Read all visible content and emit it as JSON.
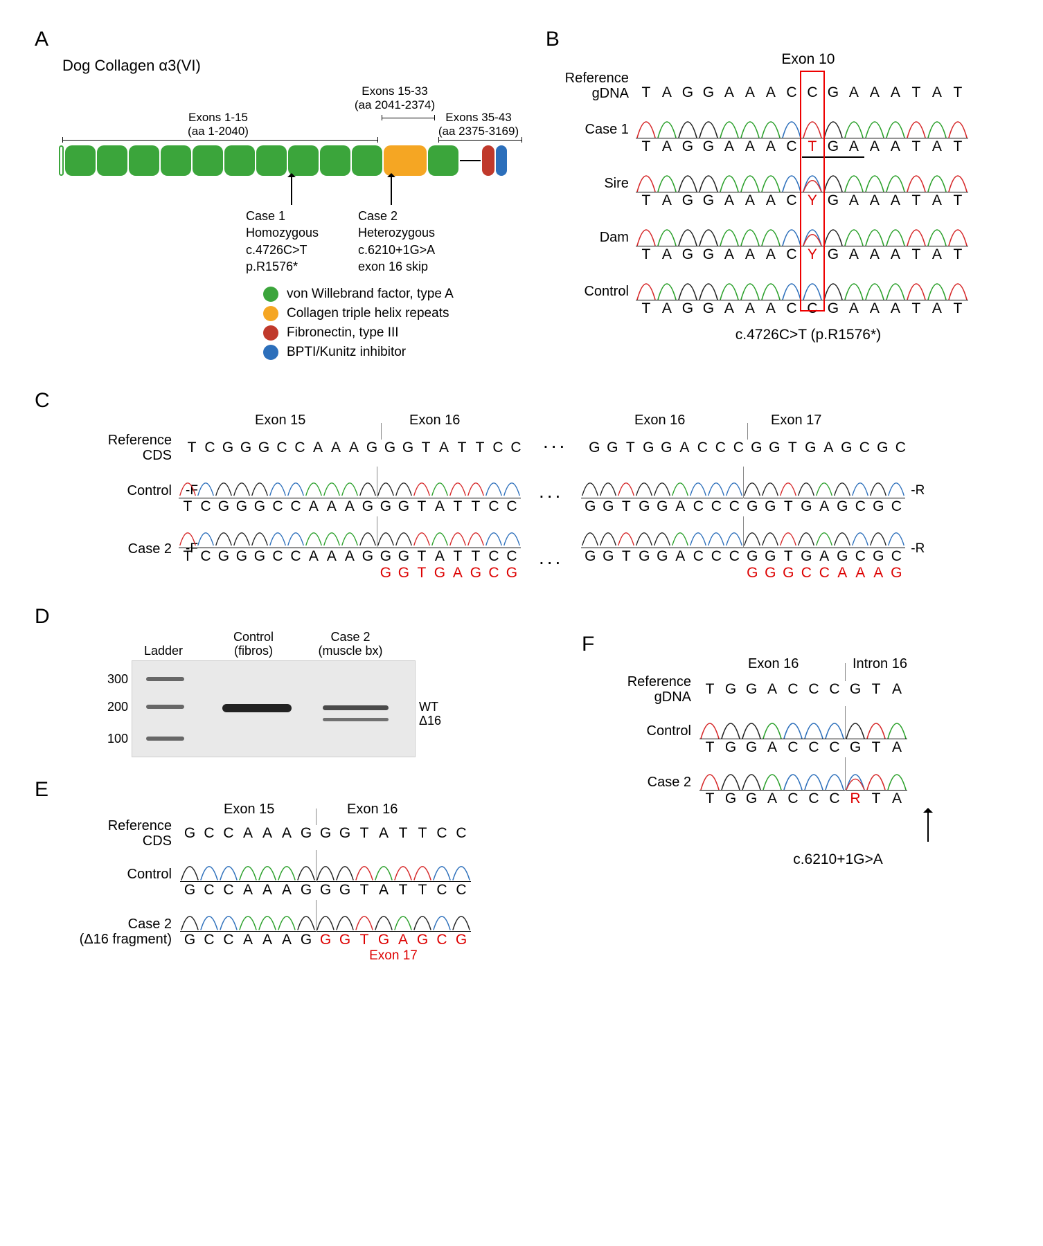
{
  "colors": {
    "vwf": "#3ba53b",
    "helix": "#f5a623",
    "fn3": "#c0392b",
    "bpti": "#2c6fbb",
    "mut": "#d00000",
    "redbox": "#e00000",
    "peakA": "#2aa02a",
    "peakC": "#2c6fbb",
    "peakG": "#222222",
    "peakT": "#d62728"
  },
  "panelA": {
    "label": "A",
    "title": "Dog Collagen α3(VI)",
    "brackets": [
      {
        "text1": "Exons 1-15",
        "text2": "(aa 1-2040)"
      },
      {
        "text1": "Exons 15-33",
        "text2": "(aa 2041-2374)"
      },
      {
        "text1": "Exons 35-43",
        "text2": "(aa 2375-3169)"
      }
    ],
    "case1": {
      "l1": "Case 1",
      "l2": "Homozygous",
      "l3": "c.4726C>T",
      "l4": "p.R1576*"
    },
    "case2": {
      "l1": "Case 2",
      "l2": "Heterozygous",
      "l3": "c.6210+1G>A",
      "l4": "exon 16 skip"
    },
    "legend": [
      {
        "color": "#3ba53b",
        "label": "von Willebrand factor, type A"
      },
      {
        "color": "#f5a623",
        "label": "Collagen triple helix repeats"
      },
      {
        "color": "#c0392b",
        "label": "Fibronectin, type III"
      },
      {
        "color": "#2c6fbb",
        "label": "BPTI/Kunitz inhibitor"
      }
    ]
  },
  "panelB": {
    "label": "B",
    "title": "Exon 10",
    "refLabel": "Reference gDNA",
    "refSeq": [
      "T",
      "A",
      "G",
      "G",
      "A",
      "A",
      "A",
      "C",
      "C",
      "G",
      "A",
      "A",
      "A",
      "T",
      "A",
      "T"
    ],
    "mutIndex": 8,
    "rows": [
      {
        "label": "Case 1",
        "seq": [
          "T",
          "A",
          "G",
          "G",
          "A",
          "A",
          "A",
          "C",
          "T",
          "G",
          "A",
          "A",
          "A",
          "T",
          "A",
          "T"
        ],
        "mutIdx": 8,
        "underline": true
      },
      {
        "label": "Sire",
        "seq": [
          "T",
          "A",
          "G",
          "G",
          "A",
          "A",
          "A",
          "C",
          "Y",
          "G",
          "A",
          "A",
          "A",
          "T",
          "A",
          "T"
        ],
        "mutIdx": 8,
        "double": true
      },
      {
        "label": "Dam",
        "seq": [
          "T",
          "A",
          "G",
          "G",
          "A",
          "A",
          "A",
          "C",
          "Y",
          "G",
          "A",
          "A",
          "A",
          "T",
          "A",
          "T"
        ],
        "mutIdx": 8,
        "double": true
      },
      {
        "label": "Control",
        "seq": [
          "T",
          "A",
          "G",
          "G",
          "A",
          "A",
          "A",
          "C",
          "C",
          "G",
          "A",
          "A",
          "A",
          "T",
          "A",
          "T"
        ],
        "mutIdx": -1
      }
    ],
    "caption": "c.4726C>T (p.R1576*)"
  },
  "panelC": {
    "label": "C",
    "headers": [
      "Exon 15",
      "Exon 16",
      "Exon 17"
    ],
    "refLabel": "Reference CDS",
    "left": {
      "ref": [
        "T",
        "C",
        "G",
        "G",
        "G",
        "C",
        "C",
        "A",
        "A",
        "A",
        "G",
        "G",
        "G",
        "T",
        "A",
        "T",
        "T",
        "C",
        "C"
      ],
      "split": 11,
      "title1": "Exon 15",
      "title2": "Exon 16"
    },
    "right": {
      "ref": [
        "G",
        "G",
        "T",
        "G",
        "G",
        "A",
        "C",
        "C",
        "C",
        "G",
        "G",
        "T",
        "G",
        "A",
        "G",
        "C",
        "G",
        "C"
      ],
      "split": 9,
      "title1": "Exon 16",
      "title2": "Exon 17"
    },
    "rows": [
      {
        "label": "Control",
        "tag": "-F",
        "tagR": "-R",
        "leftSeq": [
          "T",
          "C",
          "G",
          "G",
          "G",
          "C",
          "C",
          "A",
          "A",
          "A",
          "G",
          "G",
          "G",
          "T",
          "A",
          "T",
          "T",
          "C",
          "C"
        ],
        "rightSeq": [
          "G",
          "G",
          "T",
          "G",
          "G",
          "A",
          "C",
          "C",
          "C",
          "G",
          "G",
          "T",
          "G",
          "A",
          "G",
          "C",
          "G",
          "C"
        ]
      },
      {
        "label": "Case 2",
        "tag": "-F",
        "tagR": "-R",
        "leftSeq": [
          "T",
          "C",
          "G",
          "G",
          "G",
          "C",
          "C",
          "A",
          "A",
          "A",
          "G",
          "G",
          "G",
          "T",
          "A",
          "T",
          "T",
          "C",
          "C"
        ],
        "leftAlt": [
          "",
          "",
          "",
          "",
          "",
          "",
          "",
          "",
          "",
          "",
          "",
          "G",
          "G",
          "T",
          "G",
          "A",
          "G",
          "C",
          "G"
        ],
        "rightSeq": [
          "G",
          "G",
          "T",
          "G",
          "G",
          "A",
          "C",
          "C",
          "C",
          "G",
          "G",
          "T",
          "G",
          "A",
          "G",
          "C",
          "G",
          "C"
        ],
        "rightAlt": [
          "",
          "",
          "",
          "",
          "",
          "",
          "",
          "",
          "",
          "G",
          "G",
          "G",
          "C",
          "C",
          "A",
          "A",
          "A",
          "G"
        ],
        "overlay": true
      }
    ]
  },
  "panelD": {
    "label": "D",
    "lanes": [
      "Ladder",
      "Control (fibros)",
      "Case 2 (muscle bx)"
    ],
    "markers": [
      "300",
      "200",
      "100"
    ],
    "rightLabels": [
      "WT",
      "Δ16"
    ]
  },
  "panelE": {
    "label": "E",
    "title1": "Exon 15",
    "title2": "Exon 16",
    "refLabel": "Reference CDS",
    "ref": [
      "G",
      "C",
      "C",
      "A",
      "A",
      "A",
      "G",
      "G",
      "G",
      "T",
      "A",
      "T",
      "T",
      "C",
      "C"
    ],
    "split": 7,
    "rows": [
      {
        "label": "Control",
        "seq": [
          "G",
          "C",
          "C",
          "A",
          "A",
          "A",
          "G",
          "G",
          "G",
          "T",
          "A",
          "T",
          "T",
          "C",
          "C"
        ]
      },
      {
        "label": "Case 2",
        "sub": "(Δ16 fragment)",
        "seq": [
          "G",
          "C",
          "C",
          "A",
          "A",
          "A",
          "G",
          "G",
          "G",
          "T",
          "G",
          "A",
          "G",
          "C",
          "G"
        ],
        "altFrom": 7,
        "altLabel": "Exon 17"
      }
    ]
  },
  "panelF": {
    "label": "F",
    "title1": "Exon 16",
    "title2": "Intron 16",
    "refLabel": "Reference gDNA",
    "ref": [
      "T",
      "G",
      "G",
      "A",
      "C",
      "C",
      "C",
      "G",
      "T",
      "A"
    ],
    "split": 7,
    "rows": [
      {
        "label": "Control",
        "seq": [
          "T",
          "G",
          "G",
          "A",
          "C",
          "C",
          "C",
          "G",
          "T",
          "A"
        ]
      },
      {
        "label": "Case 2",
        "seq": [
          "T",
          "G",
          "G",
          "A",
          "C",
          "C",
          "C",
          "R",
          "T",
          "A"
        ],
        "mutIdx": 7,
        "double": true
      }
    ],
    "caption": "c.6210+1G>A"
  }
}
